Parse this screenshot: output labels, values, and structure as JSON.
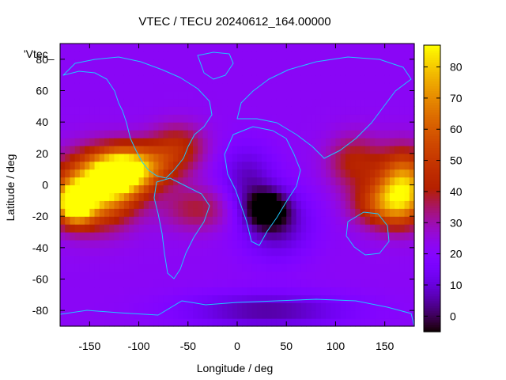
{
  "chart_data": {
    "type": "heatmap",
    "title": "VTEC / TECU 20240612_164.00000",
    "xlabel": "Longitude / deg",
    "ylabel": "Latitude / deg",
    "key_label": "'Vtec_",
    "xlim": [
      -180,
      180
    ],
    "ylim": [
      -90,
      90
    ],
    "x_ticks": [
      -150,
      -100,
      -50,
      0,
      50,
      100,
      150
    ],
    "y_ticks": [
      -80,
      -60,
      -40,
      -20,
      0,
      20,
      40,
      60,
      80
    ],
    "colorbar": {
      "range": [
        -5,
        87
      ],
      "ticks": [
        0,
        10,
        20,
        30,
        40,
        50,
        60,
        70,
        80
      ],
      "palette": "gnuplot black-purple-red-orange-yellow"
    },
    "grid": "off",
    "value_field": {
      "description_units": "TECU",
      "background": 22,
      "features": [
        {
          "lon": -145,
          "lat": -3,
          "value": 82,
          "sx": 28,
          "sy": 15
        },
        {
          "lon": -165,
          "lat": -12,
          "value": 85,
          "sx": 12,
          "sy": 8
        },
        {
          "lon": -120,
          "lat": 8,
          "value": 70,
          "sx": 20,
          "sy": 10
        },
        {
          "lon": -95,
          "lat": 12,
          "value": 55,
          "sx": 25,
          "sy": 10
        },
        {
          "lon": -60,
          "lat": 25,
          "value": 42,
          "sx": 20,
          "sy": 10
        },
        {
          "lon": -40,
          "lat": -15,
          "value": 38,
          "sx": 25,
          "sy": 10
        },
        {
          "lon": 170,
          "lat": 0,
          "value": 75,
          "sx": 18,
          "sy": 15
        },
        {
          "lon": 150,
          "lat": -12,
          "value": 55,
          "sx": 22,
          "sy": 10
        },
        {
          "lon": 120,
          "lat": 15,
          "value": 42,
          "sx": 20,
          "sy": 12
        },
        {
          "lon": 30,
          "lat": -15,
          "value": -5,
          "sx": 15,
          "sy": 8
        },
        {
          "lon": 40,
          "lat": -25,
          "value": 5,
          "sx": 25,
          "sy": 15
        },
        {
          "lon": 10,
          "lat": 5,
          "value": 8,
          "sx": 20,
          "sy": 15
        },
        {
          "lon": 30,
          "lat": -80,
          "value": 5,
          "sx": 60,
          "sy": 8
        }
      ]
    }
  }
}
